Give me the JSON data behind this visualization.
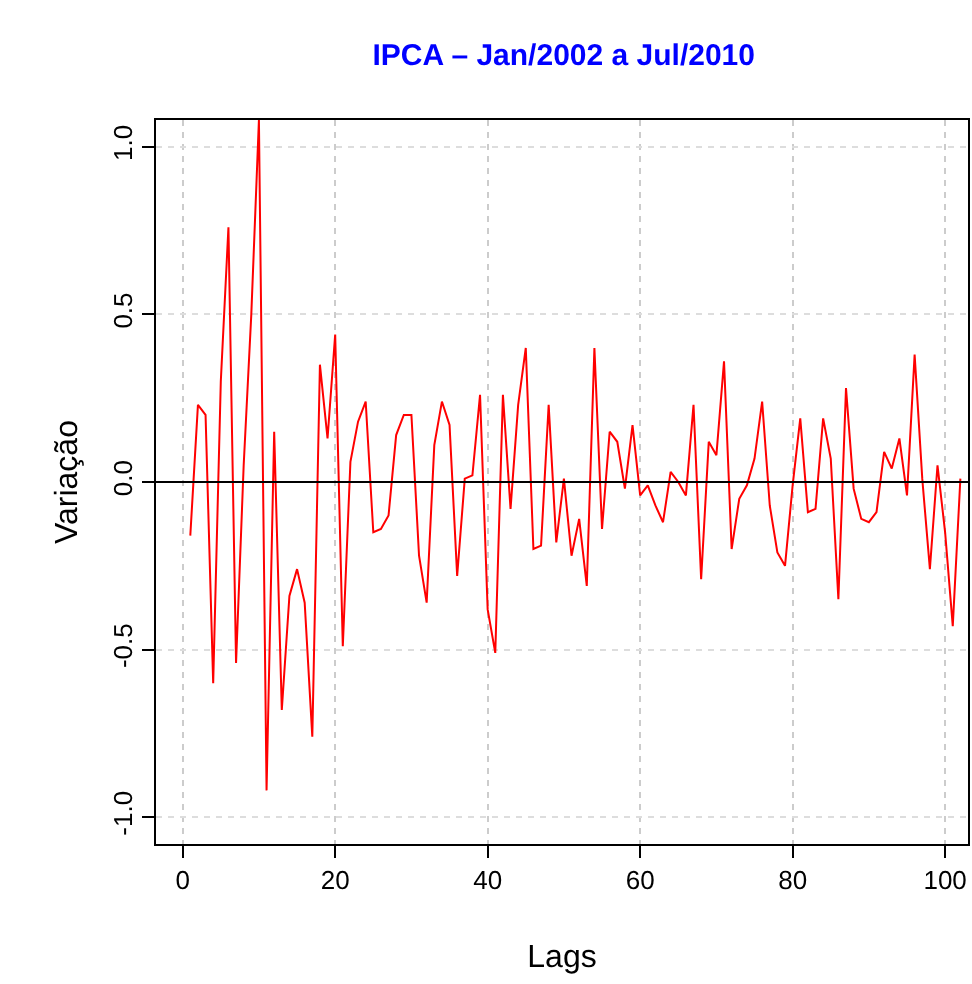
{
  "chart_data": {
    "type": "line",
    "title": "IPCA – Jan/2002 a Jul/2010",
    "xlabel": "Lags",
    "ylabel": "Variação",
    "x": [
      1,
      2,
      3,
      4,
      5,
      6,
      7,
      8,
      9,
      10,
      11,
      12,
      13,
      14,
      15,
      16,
      17,
      18,
      19,
      20,
      21,
      22,
      23,
      24,
      25,
      26,
      27,
      28,
      29,
      30,
      31,
      32,
      33,
      34,
      35,
      36,
      37,
      38,
      39,
      40,
      41,
      42,
      43,
      44,
      45,
      46,
      47,
      48,
      49,
      50,
      51,
      52,
      53,
      54,
      55,
      56,
      57,
      58,
      59,
      60,
      61,
      62,
      63,
      64,
      65,
      66,
      67,
      68,
      69,
      70,
      71,
      72,
      73,
      74,
      75,
      76,
      77,
      78,
      79,
      80,
      81,
      82,
      83,
      84,
      85,
      86,
      87,
      88,
      89,
      90,
      91,
      92,
      93,
      94,
      95,
      96,
      97,
      98,
      99,
      100,
      101,
      102
    ],
    "series": [
      {
        "color": "#ff0000",
        "values": [
          -0.16,
          0.23,
          0.2,
          -0.6,
          0.3,
          0.76,
          -0.54,
          0.05,
          0.5,
          1.08,
          -0.92,
          0.15,
          -0.68,
          -0.34,
          -0.26,
          -0.36,
          -0.76,
          0.35,
          0.13,
          0.44,
          -0.49,
          0.06,
          0.18,
          0.24,
          -0.15,
          -0.14,
          -0.1,
          0.14,
          0.2,
          0.2,
          -0.22,
          -0.36,
          0.11,
          0.24,
          0.17,
          -0.28,
          0.01,
          0.02,
          0.26,
          -0.38,
          -0.51,
          0.26,
          -0.08,
          0.23,
          0.4,
          -0.2,
          -0.19,
          0.23,
          -0.18,
          0.01,
          -0.22,
          -0.11,
          -0.31,
          0.4,
          -0.14,
          0.15,
          0.12,
          -0.02,
          0.17,
          -0.04,
          -0.01,
          -0.07,
          -0.12,
          0.03,
          0.0,
          -0.04,
          0.23,
          -0.29,
          0.12,
          0.08,
          0.36,
          -0.2,
          -0.05,
          -0.01,
          0.07,
          0.24,
          -0.07,
          -0.21,
          -0.25,
          -0.01,
          0.19,
          -0.09,
          -0.08,
          0.19,
          0.07,
          -0.35,
          0.28,
          -0.02,
          -0.11,
          -0.12,
          -0.09,
          0.09,
          0.04,
          0.13,
          -0.04,
          0.38,
          0.01,
          -0.26,
          0.05,
          -0.15,
          -0.43,
          0.01
        ]
      }
    ],
    "xlim": [
      -3.5,
      103
    ],
    "ylim": [
      -1.08,
      1.08
    ],
    "xticks": [
      0,
      20,
      40,
      60,
      80,
      100
    ],
    "yticks": [
      {
        "value": -1,
        "label": "-1.0"
      },
      -0.5,
      {
        "value": 0,
        "label": "0.0"
      },
      0.5,
      {
        "value": 1,
        "label": "1.0"
      }
    ],
    "ref_lines": [
      {
        "axis": "y",
        "value": 0,
        "color": "#000000"
      }
    ],
    "grid": true,
    "marker": "none",
    "line_style": "solid"
  }
}
